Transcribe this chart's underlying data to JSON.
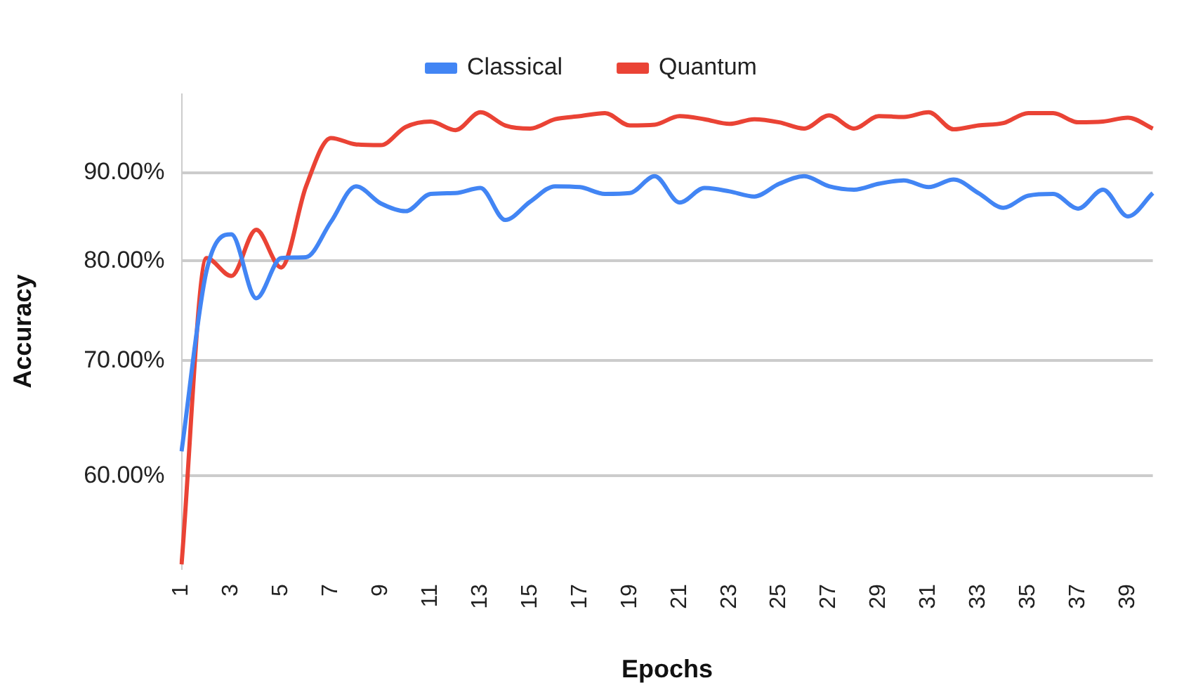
{
  "chart_data": {
    "type": "line",
    "xlabel": "Epochs",
    "ylabel": "Accuracy",
    "categories": [
      "1",
      null,
      "3",
      null,
      "5",
      null,
      "7",
      null,
      "9",
      null,
      "11",
      null,
      "13",
      null,
      "15",
      null,
      "17",
      null,
      "19",
      null,
      "21",
      null,
      "23",
      null,
      "25",
      null,
      "27",
      null,
      "29",
      null,
      "31",
      null,
      "33",
      null,
      "35",
      null,
      "37",
      null,
      "39",
      null
    ],
    "series": [
      {
        "name": "Classical",
        "color": "#4285f4",
        "values": [
          62.0,
          78.9,
          82.9,
          76.1,
          80.3,
          80.4,
          84.3,
          88.4,
          86.4,
          85.5,
          87.5,
          87.6,
          88.2,
          84.5,
          86.6,
          88.4,
          88.3,
          87.5,
          87.6,
          89.6,
          86.5,
          88.2,
          87.8,
          87.2,
          88.7,
          89.6,
          88.4,
          88.0,
          88.7,
          89.1,
          88.3,
          89.2,
          87.6,
          85.9,
          87.3,
          87.5,
          85.8,
          88.0,
          84.9,
          87.6
        ]
      },
      {
        "name": "Quantum",
        "color": "#ea4335",
        "values": [
          53.3,
          80.3,
          78.4,
          83.4,
          79.3,
          88.4,
          94.3,
          93.5,
          93.4,
          95.7,
          96.4,
          95.3,
          97.6,
          95.9,
          95.5,
          96.7,
          97.1,
          97.5,
          95.9,
          96.0,
          97.1,
          96.7,
          96.1,
          96.7,
          96.3,
          95.5,
          97.2,
          95.5,
          97.1,
          97.0,
          97.6,
          95.4,
          95.9,
          96.2,
          97.5,
          97.5,
          96.3,
          96.4,
          96.9,
          95.5
        ]
      }
    ],
    "log": "y",
    "ylim": [
      53,
      100
    ],
    "yticks": [
      {
        "value": 60,
        "label": "60.00%"
      },
      {
        "value": 70,
        "label": "70.00%"
      },
      {
        "value": 80,
        "label": "80.00%"
      },
      {
        "value": 90,
        "label": "90.00%"
      }
    ],
    "grid": "y",
    "legend": "top",
    "marker": "none",
    "line_style": "solid"
  }
}
